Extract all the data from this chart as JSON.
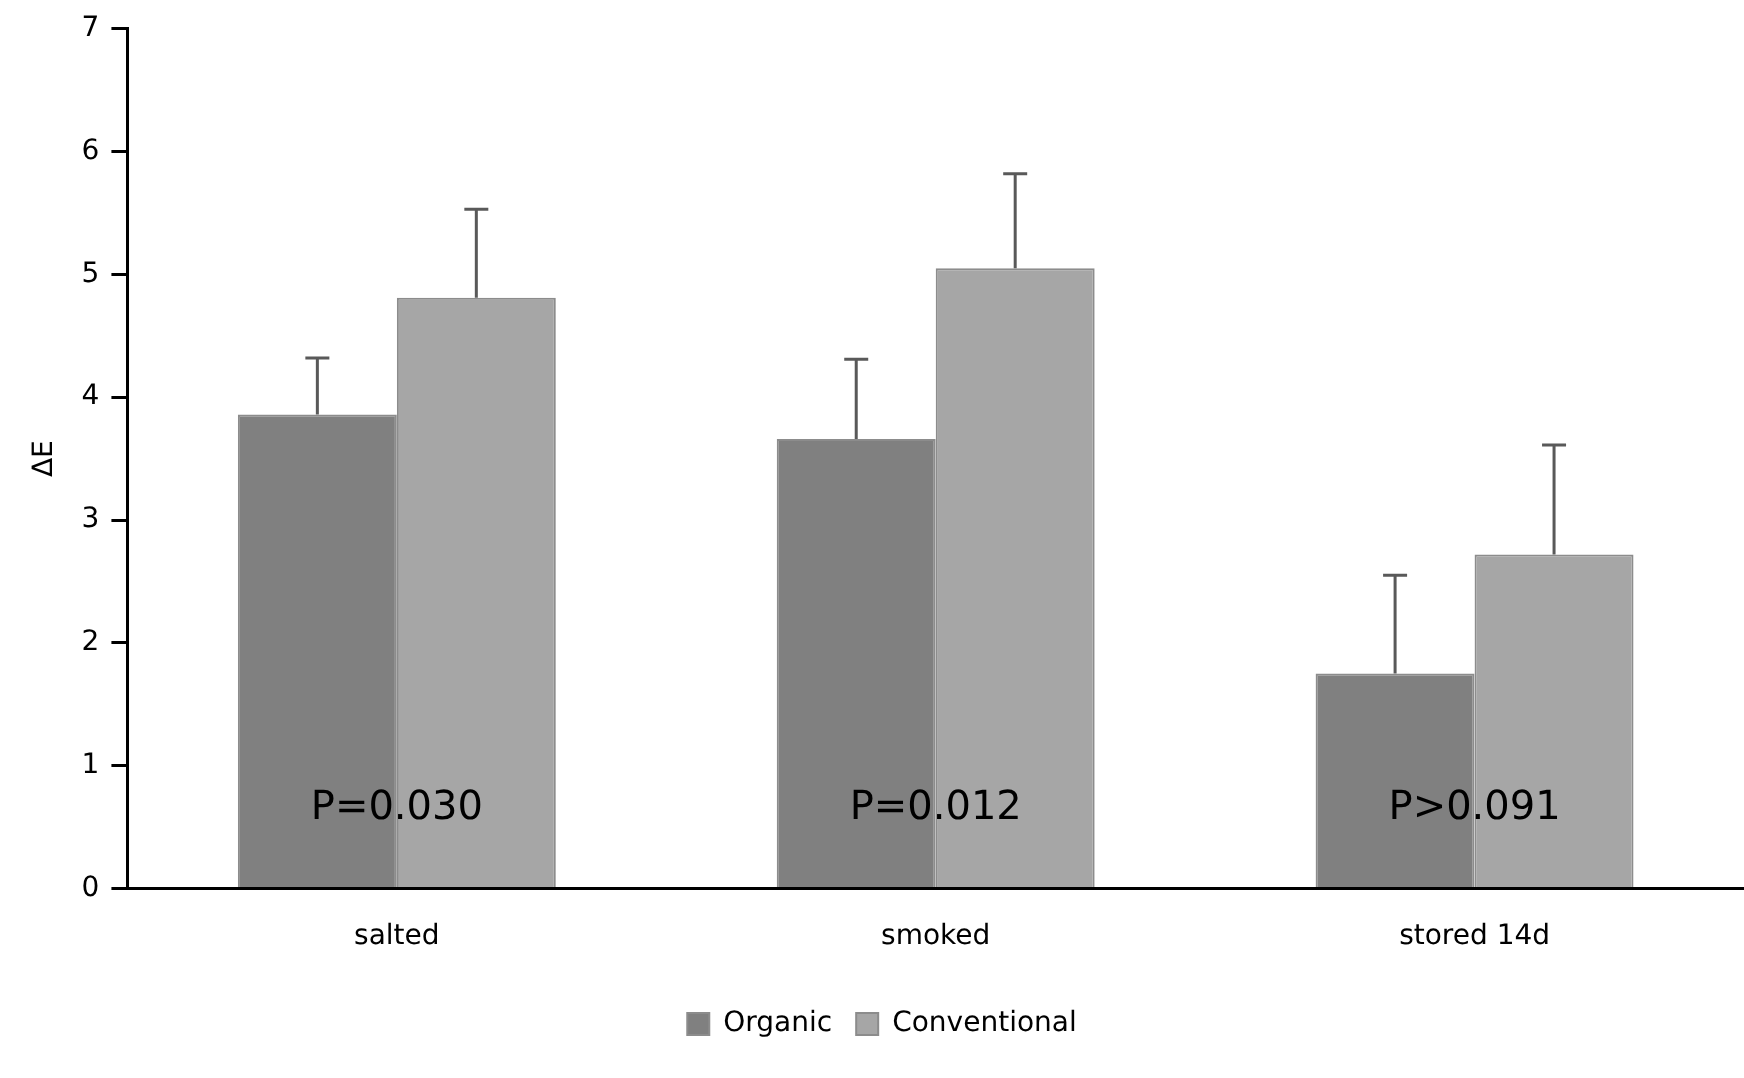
{
  "chart_data": {
    "type": "bar",
    "ylabel": "ΔE",
    "categories": [
      "salted",
      "smoked",
      "stored 14d"
    ],
    "series": [
      {
        "name": "Organic",
        "color": "#808080",
        "values": [
          3.86,
          3.66,
          1.75
        ],
        "errors": [
          [
            3.86,
            4.32
          ],
          [
            3.66,
            4.31
          ],
          [
            1.75,
            2.55
          ]
        ]
      },
      {
        "name": "Conventional",
        "color": "#a6a6a6",
        "values": [
          4.81,
          5.05,
          2.72
        ],
        "errors": [
          [
            4.81,
            5.53
          ],
          [
            5.05,
            5.82
          ],
          [
            2.72,
            3.61
          ]
        ]
      }
    ],
    "ylim": [
      0,
      7
    ],
    "yticks": [
      0,
      1,
      2,
      3,
      4,
      5,
      6,
      7
    ],
    "grid": false,
    "legend": "bottom",
    "annotations": [
      {
        "text": "P=0.030",
        "x": "salted",
        "y": 0.65
      },
      {
        "text": "P=0.012",
        "x": "smoked",
        "y": 0.65
      },
      {
        "text": "P>0.091",
        "x": "stored 14d",
        "y": 0.65
      }
    ]
  }
}
